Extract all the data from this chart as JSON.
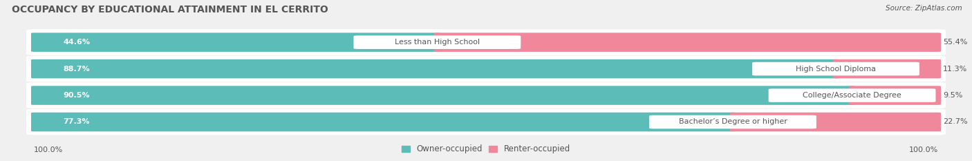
{
  "title": "OCCUPANCY BY EDUCATIONAL ATTAINMENT IN EL CERRITO",
  "source": "Source: ZipAtlas.com",
  "categories": [
    "Less than High School",
    "High School Diploma",
    "College/Associate Degree",
    "Bachelor’s Degree or higher"
  ],
  "owner_pct": [
    44.6,
    88.7,
    90.5,
    77.3
  ],
  "renter_pct": [
    55.4,
    11.3,
    9.5,
    22.7
  ],
  "owner_color": "#5bbcb8",
  "renter_color": "#f0879b",
  "bg_color": "#f0f0f0",
  "row_bg_color": "#ffffff",
  "title_color": "#555555",
  "text_color": "#555555",
  "label_bg_color": "#ffffff",
  "axis_label_left": "100.0%",
  "axis_label_right": "100.0%",
  "legend_owner": "Owner-occupied",
  "legend_renter": "Renter-occupied",
  "title_fontsize": 10,
  "bar_label_fontsize": 8,
  "category_fontsize": 8,
  "legend_fontsize": 8.5,
  "source_fontsize": 7.5
}
